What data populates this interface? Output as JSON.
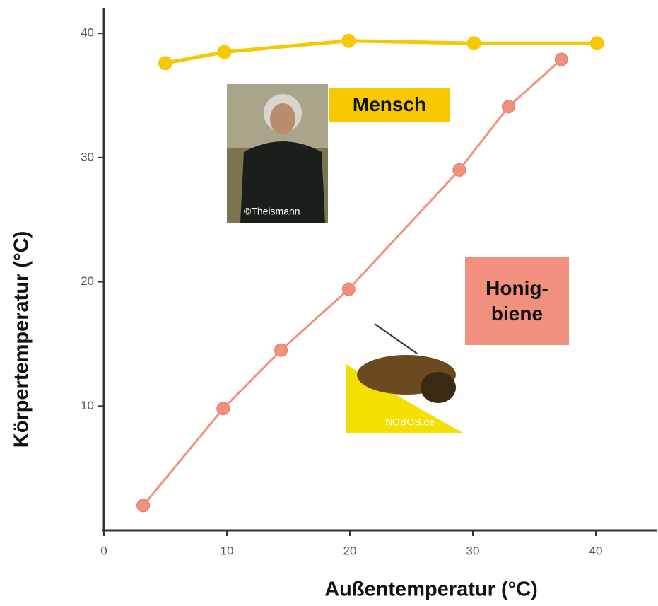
{
  "chart_data": {
    "type": "line",
    "x_label": "Außentemperatur (°C)",
    "y_label": "Körpertemperatur (°C)",
    "xlim": [
      0,
      45
    ],
    "ylim": [
      0,
      42
    ],
    "xticks": [
      0,
      10,
      20,
      30,
      40
    ],
    "yticks": [
      10,
      20,
      30,
      40
    ],
    "series": [
      {
        "name": "Mensch",
        "color": "#f5c800",
        "x": [
          5.0,
          9.8,
          19.9,
          30.1,
          40.1
        ],
        "values": [
          37.6,
          38.5,
          39.4,
          39.2,
          39.2
        ]
      },
      {
        "name": "Honig-\nbiene",
        "color": "#f2907f",
        "x": [
          3.2,
          9.7,
          14.4,
          19.9,
          28.9,
          32.9,
          37.2
        ],
        "values": [
          2.0,
          9.8,
          14.5,
          19.4,
          29.0,
          34.1,
          37.9
        ]
      }
    ],
    "photo_credits": [
      "©Theismann",
      "NOBOS.de"
    ]
  }
}
